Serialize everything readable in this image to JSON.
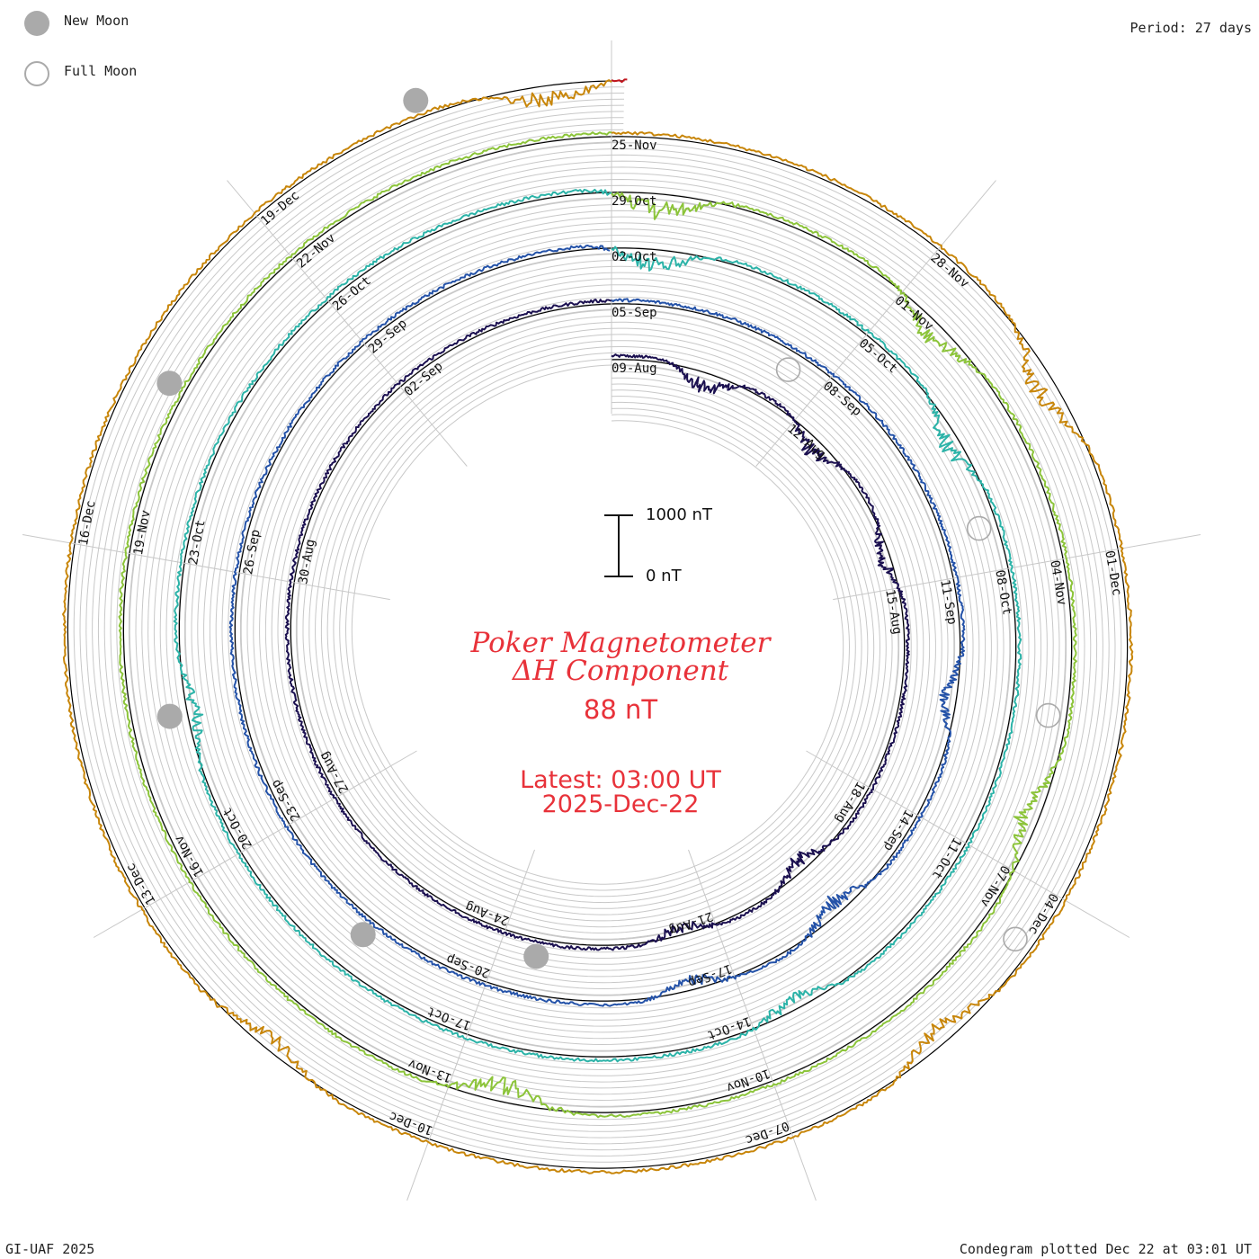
{
  "legend": {
    "new_moon_label": "New Moon",
    "full_moon_label": "Full Moon",
    "new_moon_color": "#aaaaaa",
    "full_moon_color": "#aaaaaa"
  },
  "period_label": "Period: 27 days",
  "title": {
    "line1": "Poker Magnetometer",
    "line2": "ΔH Component",
    "value": "88 nT",
    "latest_label": "Latest: 03:00 UT",
    "latest_date": "2025-Dec-22",
    "color": "#e8323a"
  },
  "scale": {
    "top_label": "1000 nT",
    "bottom_label": "0 nT",
    "nT_span": 1000
  },
  "footer": {
    "left": "GI-UAF 2025",
    "right": "Condegram plotted Dec 22 at 03:01 UT"
  },
  "chart_data": {
    "type": "line",
    "title": "Poker Magnetometer ΔH Component",
    "period_days": 27,
    "start_date": "2025-08-09",
    "end_date": "2025-12-22",
    "units": "nT",
    "tick_interval_days": 3,
    "rotations": [
      {
        "name": "Aug-Sep",
        "color": "#1b1050",
        "date_labels": [
          "09-Aug",
          "12-Aug",
          "15-Aug",
          "18-Aug",
          "21-Aug",
          "24-Aug",
          "27-Aug",
          "30-Aug",
          "02-Sep"
        ]
      },
      {
        "name": "Sep",
        "color": "#2452a8",
        "date_labels": [
          "05-Sep",
          "08-Sep",
          "11-Sep",
          "14-Sep",
          "17-Sep",
          "20-Sep",
          "23-Sep",
          "26-Sep",
          "29-Sep"
        ]
      },
      {
        "name": "Oct",
        "color": "#2cb3a8",
        "date_labels": [
          "02-Oct",
          "05-Oct",
          "08-Oct",
          "11-Oct",
          "14-Oct",
          "17-Oct",
          "20-Oct",
          "23-Oct",
          "26-Oct"
        ]
      },
      {
        "name": "Nov",
        "color": "#8cc43a",
        "date_labels": [
          "29-Oct",
          "01-Nov",
          "04-Nov",
          "07-Nov",
          "10-Nov",
          "13-Nov",
          "16-Nov",
          "19-Nov",
          "22-Nov"
        ]
      },
      {
        "name": "Dec",
        "color": "#c8860a",
        "date_labels": [
          "25-Nov",
          "28-Nov",
          "01-Dec",
          "04-Dec",
          "07-Dec",
          "10-Dec",
          "13-Dec",
          "16-Dec"
        ]
      },
      {
        "name": "Latest",
        "color": "#c0141c",
        "date_labels": []
      }
    ],
    "new_moons": [
      "2025-08-23",
      "2025-09-21",
      "2025-10-21",
      "2025-11-20",
      "2025-12-20"
    ],
    "full_moons": [
      "2025-09-07",
      "2025-10-07",
      "2025-11-05",
      "2025-12-04"
    ],
    "activity_days": [
      {
        "date": "2025-08-10",
        "peak_nT": 420
      },
      {
        "date": "2025-08-12",
        "peak_nT": 380
      },
      {
        "date": "2025-08-14",
        "peak_nT": 300
      },
      {
        "date": "2025-08-19",
        "peak_nT": 330
      },
      {
        "date": "2025-08-21",
        "peak_nT": 260
      },
      {
        "date": "2025-09-12",
        "peak_nT": 320
      },
      {
        "date": "2025-09-15",
        "peak_nT": 380
      },
      {
        "date": "2025-09-17",
        "peak_nT": 300
      },
      {
        "date": "2025-10-02",
        "peak_nT": 460
      },
      {
        "date": "2025-10-06",
        "peak_nT": 380
      },
      {
        "date": "2025-10-13",
        "peak_nT": 340
      },
      {
        "date": "2025-10-21",
        "peak_nT": 300
      },
      {
        "date": "2025-10-29",
        "peak_nT": 480
      },
      {
        "date": "2025-11-01",
        "peak_nT": 420
      },
      {
        "date": "2025-11-06",
        "peak_nT": 470
      },
      {
        "date": "2025-11-12",
        "peak_nT": 480
      },
      {
        "date": "2025-11-29",
        "peak_nT": 500
      },
      {
        "date": "2025-12-05",
        "peak_nT": 420
      },
      {
        "date": "2025-12-11",
        "peak_nT": 330
      },
      {
        "date": "2025-12-21",
        "peak_nT": 420
      }
    ]
  }
}
